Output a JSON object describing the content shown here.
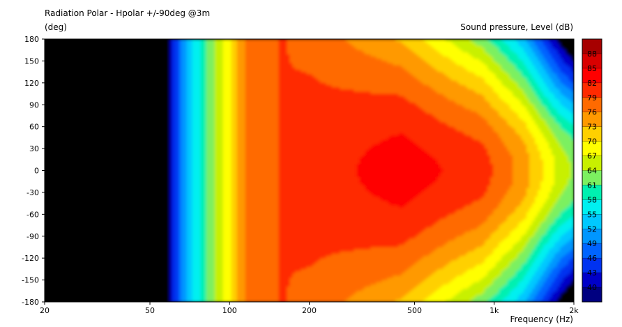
{
  "chart_data": {
    "type": "heatmap",
    "title": "Radiation Polar - Hpolar +/-90deg @3m",
    "ylabel": "(deg)",
    "xlabel": "Frequency  (Hz)",
    "colorbar_label": "Sound pressure, Level  (dB)",
    "x_scale": "log",
    "xlim": [
      20,
      2000
    ],
    "ylim": [
      -180,
      180
    ],
    "x_ticks": [
      20,
      50,
      100,
      200,
      500,
      1000,
      2000
    ],
    "x_tick_labels": [
      "20",
      "50",
      "100",
      "200",
      "500",
      "1k",
      "2k"
    ],
    "y_ticks": [
      180,
      150,
      120,
      90,
      60,
      30,
      0,
      -30,
      -60,
      -90,
      -120,
      -150,
      -180
    ],
    "level_labels": [
      88,
      85,
      82,
      79,
      76,
      73,
      70,
      67,
      64,
      61,
      58,
      55,
      52,
      49,
      46,
      43,
      40
    ],
    "level_colors": [
      "#a60000",
      "#d90000",
      "#ff0000",
      "#ff2a00",
      "#ff6a00",
      "#ff9900",
      "#ffd000",
      "#ffff00",
      "#c8f000",
      "#7cf060",
      "#00f0b0",
      "#00f0f0",
      "#00c8ff",
      "#0096ff",
      "#0064ff",
      "#0032f0",
      "#0000c8",
      "#000080"
    ],
    "below_range_color": "#000000",
    "contours_db_at_0deg": [
      {
        "frequency": 60,
        "level": 40
      },
      {
        "frequency": 70,
        "level": 52
      },
      {
        "frequency": 90,
        "level": 64
      },
      {
        "frequency": 120,
        "level": 76
      },
      {
        "frequency": 200,
        "level": 79
      },
      {
        "frequency": 450,
        "level": 82
      },
      {
        "frequency": 900,
        "level": 79
      },
      {
        "frequency": 1300,
        "level": 73
      },
      {
        "frequency": 1800,
        "level": 64
      }
    ]
  }
}
